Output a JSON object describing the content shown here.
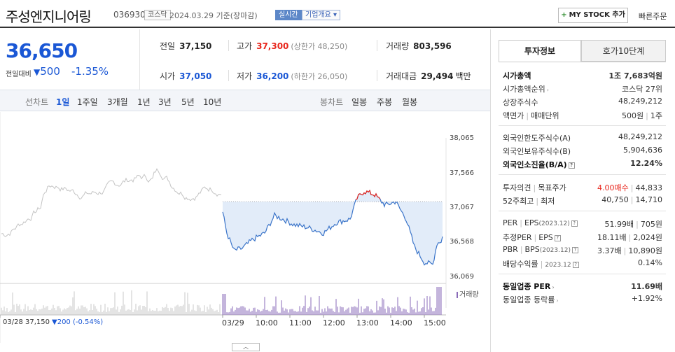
{
  "header": {
    "name": "주성엔지니어링",
    "code": "036930",
    "market": "코스닥",
    "date": "2024.03.29 기준(장마감)",
    "live": "실시간",
    "company": "기업개요",
    "mystock": "MY STOCK 추가",
    "quick_order": "빠른주문"
  },
  "quote": {
    "price": "36,650",
    "change_label": "전일대비",
    "change_value": "500",
    "change_pct": "-1.35%",
    "prev_close_label": "전일",
    "prev_close": "37,150",
    "open_label": "시가",
    "open": "37,050",
    "high_label": "고가",
    "high": "37,300",
    "upper_limit": "(상한가 48,250)",
    "low_label": "저가",
    "low": "36,200",
    "lower_limit": "(하한가 26,050)",
    "volume_label": "거래량",
    "volume": "803,596",
    "amount_label": "거래대금",
    "amount": "29,494",
    "amount_unit": "백만"
  },
  "period": {
    "line_title": "선차트",
    "line_items": [
      "1일",
      "1주일",
      "3개월",
      "1년",
      "3년",
      "5년",
      "10년"
    ],
    "active_index": 0,
    "candle_title": "봉차트",
    "candle_items": [
      "일봉",
      "주봉",
      "월봉"
    ]
  },
  "chart": {
    "yticks": [
      "38,065",
      "37,566",
      "37,067",
      "36,568",
      "36,069"
    ],
    "xlabels": [
      "03/28",
      "03/29",
      "10:00",
      "11:00",
      "12:00",
      "13:00",
      "14:00",
      "15:00"
    ],
    "prev_info": {
      "price": "37,150",
      "change": "▼200 (-0.54%)"
    },
    "volume_label": "거래량",
    "reference_line": 37150,
    "colors": {
      "line": "#3a74c9",
      "up": "#e8261c",
      "prev_line": "#c4c4c4",
      "fill": "#dfeaf8",
      "volume_today": "#8a6bb8",
      "volume_prev": "#c8c8c8"
    }
  },
  "tabs": {
    "invest": "투자정보",
    "hoga": "호가10단계"
  },
  "invest": {
    "market_cap_label": "시가총액",
    "market_cap": "1조 7,683억원",
    "rank_label": "시가총액순위",
    "rank": "코스닥 27위",
    "shares_label": "상장주식수",
    "shares": "48,249,212",
    "face_label": "액면가",
    "trade_unit_label": "매매단위",
    "face": "500원",
    "trade_unit": "1주",
    "foreign_limit_label": "외국인한도주식수(A)",
    "foreign_limit": "48,249,212",
    "foreign_hold_label": "외국인보유주식수(B)",
    "foreign_hold": "5,904,636",
    "foreign_rate_label": "외국인소진율(B/A)",
    "foreign_rate": "12.24%",
    "opinion_label": "투자의견",
    "target_label": "목표주가",
    "opinion": "4.00매수",
    "target": "44,833",
    "w52_label": "52주최고",
    "w52_low_label": "최저",
    "w52_high": "40,750",
    "w52_low": "14,710",
    "per_label": "PER",
    "eps_label": "EPS",
    "eps_year": "(2023.12)",
    "per": "51.99배",
    "eps": "705원",
    "est_per_label": "추정PER",
    "est_eps_label": "EPS",
    "est_per": "18.11배",
    "est_eps": "2,024원",
    "pbr_label": "PBR",
    "bps_label": "BPS",
    "bps_year": "(2023.12)",
    "pbr": "3.37배",
    "bps": "10,890원",
    "div_label": "배당수익률",
    "div_year": "2023.12",
    "div": "0.14%",
    "sector_per_label": "동일업종 PER",
    "sector_per": "11.69배",
    "sector_rate_label": "동일업종 등락률",
    "sector_rate": "+1.92%"
  }
}
